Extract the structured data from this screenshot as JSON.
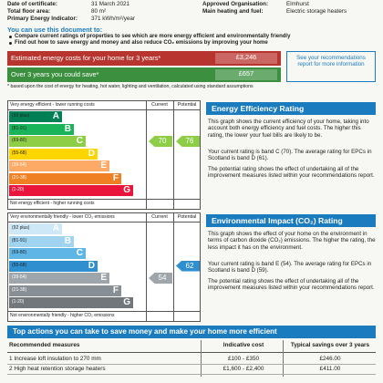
{
  "header": {
    "rows": [
      [
        "Date of certificate:",
        "31 March 2021",
        "Approved Organisation:",
        "Elmhurst"
      ],
      [
        "Total floor area:",
        "80 m²",
        "Main heating and fuel:",
        "Electric storage heaters"
      ],
      [
        "Primary Energy Indicator:",
        "371 kWh/m²/year",
        "",
        ""
      ]
    ]
  },
  "intro": {
    "title": "You can use this document to:",
    "bullets": [
      "Compare current ratings of properties to see which are more energy efficient and environmentally friendly",
      "Find out how to save energy and money and also reduce CO₂ emissions by improving your home"
    ]
  },
  "costs": {
    "rows": [
      [
        "Estimated energy costs for your home for 3 years*",
        "£3,246"
      ],
      [
        "Over 3 years you could save*",
        "£657"
      ]
    ],
    "side": "See your recommendations report for more information",
    "footnote": "* based upon the cost of energy for heating, hot water, lighting and ventilation, calculated using standard assumptions"
  },
  "energy": {
    "top": "Very energy efficient - lower running costs",
    "current_label": "Current",
    "potential_label": "Potential",
    "bands": [
      [
        "(92 plus)",
        "A"
      ],
      [
        "(81-91)",
        "B"
      ],
      [
        "(69-80)",
        "C"
      ],
      [
        "(55-68)",
        "D"
      ],
      [
        "(39-54)",
        "E"
      ],
      [
        "(21-38)",
        "F"
      ],
      [
        "(1-20)",
        "G"
      ]
    ],
    "bottom": "Not energy efficient - higher running costs",
    "current": 70,
    "potential": 76,
    "title": "Energy Efficiency Rating",
    "paragraphs": [
      "This graph shows the current efficiency of your home, taking into account both energy efficiency and fuel costs. The higher this rating, the lower your fuel bills are likely to be.",
      "Your current rating is band C (70). The average rating for EPCs in Scotland is band D (61).",
      "The potential rating shows the effect of undertaking all of the improvement measures listed within your recommendations report."
    ]
  },
  "environment": {
    "top": "Very environmentally friendly - lower CO₂ emissions",
    "current_label": "Current",
    "potential_label": "Potential",
    "bands": [
      [
        "(92 plus)",
        "A"
      ],
      [
        "(81-91)",
        "B"
      ],
      [
        "(69-80)",
        "C"
      ],
      [
        "(55-68)",
        "D"
      ],
      [
        "(39-54)",
        "E"
      ],
      [
        "(21-38)",
        "F"
      ],
      [
        "(1-20)",
        "G"
      ]
    ],
    "bottom": "Not environmentally friendly - higher CO₂ emissions",
    "current": 54,
    "potential": 62,
    "title": "Environmental Impact (CO₂) Rating",
    "paragraphs": [
      "This graph shows the effect of your home on the environment in terms of carbon dioxide (CO₂) emissions. The higher the rating, the less impact it has on the environment.",
      "Your current rating is band E (54). The average rating for EPCs in Scotland is band D (59).",
      "The potential rating shows the effect of undertaking all of the improvement measures listed within your recommendations report."
    ]
  },
  "actions": {
    "title": "Top actions you can take to save money and make your home more efficient",
    "headers": [
      "Recommended measures",
      "Indicative cost",
      "Typical savings over 3 years"
    ],
    "rows": [
      [
        "1 Increase loft insulation to 270 mm",
        "£100 - £350",
        "£246.00"
      ],
      [
        "2 High heat retention storage heaters",
        "£1,600 - £2,400",
        "£411.00"
      ]
    ]
  }
}
